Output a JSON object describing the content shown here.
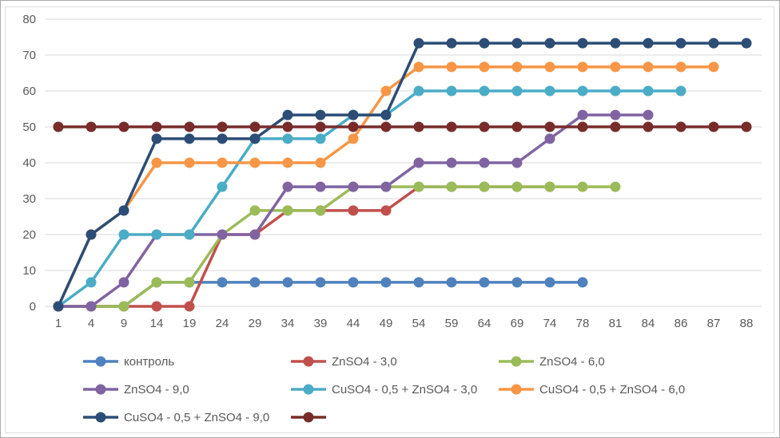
{
  "chart_data": {
    "type": "line",
    "title": "",
    "xlabel": "",
    "ylabel": "",
    "ylim": [
      0,
      80
    ],
    "y_ticks": [
      0,
      10,
      20,
      30,
      40,
      50,
      60,
      70,
      80
    ],
    "grid": true,
    "legend_position": "bottom",
    "categories": [
      1,
      4,
      9,
      14,
      19,
      24,
      29,
      34,
      39,
      44,
      49,
      54,
      59,
      64,
      69,
      74,
      78,
      81,
      84,
      86,
      87,
      88
    ],
    "series": [
      {
        "name": "контроль",
        "color": "#4F81BD",
        "values": [
          0,
          0,
          0,
          6.7,
          6.7,
          6.7,
          6.7,
          6.7,
          6.7,
          6.7,
          6.7,
          6.7,
          6.7,
          6.7,
          6.7,
          6.7,
          6.7,
          null,
          null,
          null,
          null,
          null
        ]
      },
      {
        "name": "ZnSO4 - 3,0",
        "color": "#C0504D",
        "values": [
          0,
          0,
          0,
          0,
          0,
          20,
          20,
          26.7,
          26.7,
          26.7,
          26.7,
          33.3,
          33.3,
          33.3,
          33.3,
          33.3,
          null,
          null,
          null,
          null,
          null,
          null
        ]
      },
      {
        "name": "ZnSO4  - 6,0",
        "color": "#9BBB59",
        "values": [
          0,
          0,
          0,
          6.7,
          6.7,
          20,
          26.7,
          26.7,
          26.7,
          33.3,
          33.3,
          33.3,
          33.3,
          33.3,
          33.3,
          33.3,
          33.3,
          33.3,
          null,
          null,
          null,
          null
        ]
      },
      {
        "name": "ZnSO4 -  9,0",
        "color": "#8064A2",
        "values": [
          0,
          0,
          6.7,
          20,
          20,
          20,
          20,
          33.3,
          33.3,
          33.3,
          33.3,
          40,
          40,
          40,
          40,
          46.7,
          53.3,
          53.3,
          53.3,
          null,
          null,
          null
        ]
      },
      {
        "name": "CuSO4 - 0,5  +  ZnSO4  - 3,0",
        "color": "#4BACC6",
        "values": [
          0,
          6.7,
          20,
          20,
          20,
          33.3,
          46.7,
          46.7,
          46.7,
          53.3,
          53.3,
          60,
          60,
          60,
          60,
          60,
          60,
          60,
          60,
          60,
          null,
          null
        ]
      },
      {
        "name": "CuSO4 -  0,5  +  ZnSO4  - 6,0",
        "color": "#F79646",
        "values": [
          0,
          20,
          26.7,
          40,
          40,
          40,
          40,
          40,
          40,
          46.7,
          60,
          66.7,
          66.7,
          66.7,
          66.7,
          66.7,
          66.7,
          66.7,
          66.7,
          66.7,
          66.7,
          null
        ]
      },
      {
        "name": "CuSO4  - 0,5  +  ZnSO4 - 9,0",
        "color": "#2C4D75",
        "values": [
          0,
          20,
          26.7,
          46.7,
          46.7,
          46.7,
          46.7,
          53.3,
          53.3,
          53.3,
          53.3,
          73.3,
          73.3,
          73.3,
          73.3,
          73.3,
          73.3,
          73.3,
          73.3,
          73.3,
          73.3,
          73.3
        ]
      },
      {
        "name": "",
        "color": "#772C2A",
        "values": [
          50,
          50,
          50,
          50,
          50,
          50,
          50,
          50,
          50,
          50,
          50,
          50,
          50,
          50,
          50,
          50,
          50,
          50,
          50,
          50,
          50,
          50
        ]
      }
    ],
    "legend_rows": [
      [
        0,
        1,
        2
      ],
      [
        3,
        4,
        5
      ],
      [
        6,
        7
      ]
    ]
  }
}
